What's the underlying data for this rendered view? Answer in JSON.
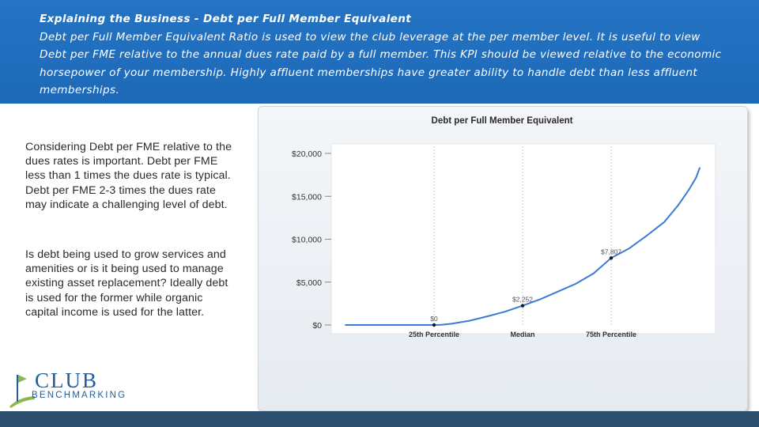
{
  "header": {
    "title": "Explaining the Business  - Debt per Full Member Equivalent",
    "body": "Debt per Full Member Equivalent Ratio is used to view the club leverage at the per member level. It is useful to view Debt per FME relative to the annual dues rate paid by a full member. This KPI should be viewed relative to the economic horsepower of your membership. Highly affluent memberships have greater ability to handle debt than less affluent memberships."
  },
  "left_text": {
    "paragraph1": "Considering Debt per FME relative to the dues rates is important. Debt per FME less than 1 times the dues rate is typical. Debt per FME 2-3 times the dues rate may indicate a challenging level of debt.",
    "paragraph2": "Is debt being used to grow  services and amenities or is it being used to manage existing asset replacement? Ideally debt is used for the former while organic capital income is used for the latter."
  },
  "logo": {
    "word1": "CLUB",
    "word2": "BENCHMARKING"
  },
  "colors": {
    "header_bg": "#1f6fbf",
    "line": "#3a7bd5",
    "footer": "#2d4f6e"
  },
  "chart_data": {
    "type": "line",
    "title": "Debt per Full Member Equivalent",
    "xlabel": "",
    "ylabel": "",
    "x": [
      0,
      10,
      20,
      24,
      25,
      27,
      30,
      35,
      40,
      45,
      50,
      55,
      60,
      65,
      70,
      75,
      80,
      85,
      90,
      94,
      97,
      99,
      100
    ],
    "values": [
      0,
      0,
      0,
      0,
      0,
      30,
      150,
      500,
      1000,
      1550,
      2252,
      3000,
      3900,
      4800,
      6000,
      7807,
      8900,
      10400,
      12000,
      14000,
      15800,
      17200,
      18300
    ],
    "ylim": [
      0,
      20000
    ],
    "yticks": [
      {
        "value": 0,
        "label": "$0"
      },
      {
        "value": 5000,
        "label": "$5,000"
      },
      {
        "value": 10000,
        "label": "$10,000"
      },
      {
        "value": 15000,
        "label": "$15,000"
      },
      {
        "value": 20000,
        "label": "$20,000"
      }
    ],
    "xticks": [
      {
        "value": 25,
        "label": "25th Percentile"
      },
      {
        "value": 50,
        "label": "Median"
      },
      {
        "value": 75,
        "label": "75th Percentile"
      }
    ],
    "annotations": [
      {
        "x": 25,
        "y": 0,
        "label": "$0"
      },
      {
        "x": 50,
        "y": 2252,
        "label": "$2,252"
      },
      {
        "x": 75,
        "y": 7807,
        "label": "$7,807"
      }
    ],
    "grid": "vertical at percentile ticks"
  }
}
